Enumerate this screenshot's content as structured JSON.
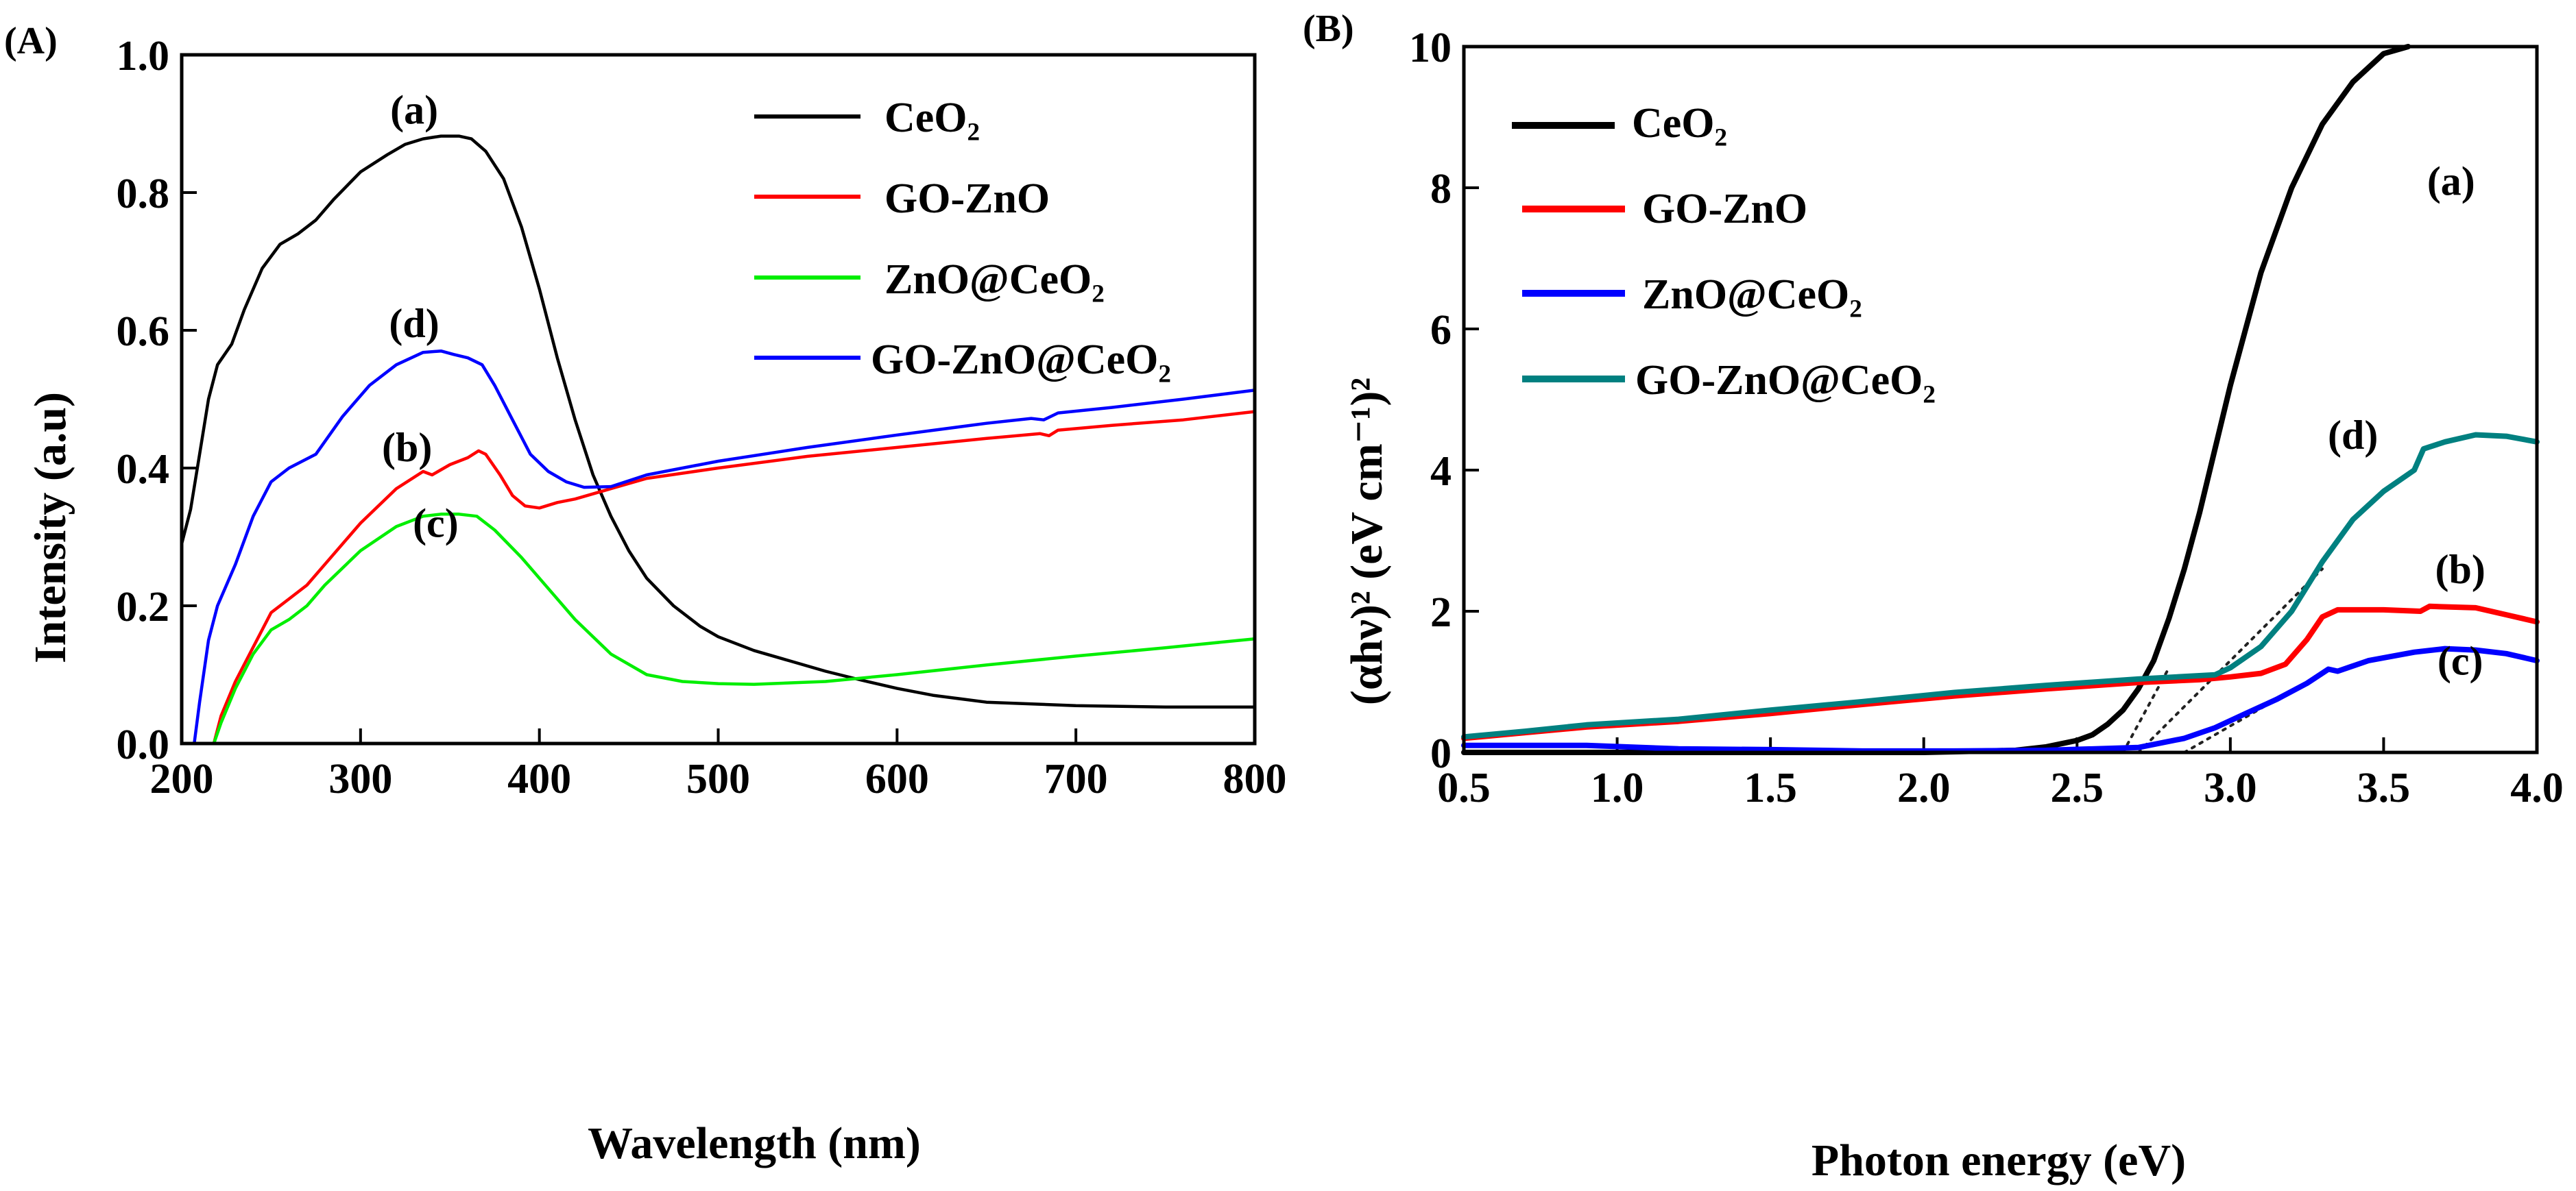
{
  "chart_data": [
    {
      "panel": "(A)",
      "type": "line",
      "xlabel": "Wavelength (nm)",
      "ylabel": "Intensity (a.u)",
      "xlim": [
        200,
        800
      ],
      "ylim": [
        0.0,
        1.0
      ],
      "xticks": [
        "200",
        "300",
        "400",
        "500",
        "600",
        "700",
        "800"
      ],
      "yticks": [
        "0.0",
        "0.2",
        "0.4",
        "0.6",
        "0.8",
        "1.0"
      ],
      "legend_position": "top-right",
      "series": [
        {
          "name": "CeO₂",
          "color": "#000000",
          "points": [
            [
              200,
              0.29
            ],
            [
              205,
              0.34
            ],
            [
              210,
              0.42
            ],
            [
              215,
              0.5
            ],
            [
              220,
              0.55
            ],
            [
              228,
              0.58
            ],
            [
              235,
              0.63
            ],
            [
              245,
              0.69
            ],
            [
              255,
              0.725
            ],
            [
              265,
              0.74
            ],
            [
              275,
              0.76
            ],
            [
              285,
              0.79
            ],
            [
              300,
              0.83
            ],
            [
              315,
              0.855
            ],
            [
              325,
              0.87
            ],
            [
              335,
              0.878
            ],
            [
              345,
              0.882
            ],
            [
              355,
              0.882
            ],
            [
              362,
              0.878
            ],
            [
              370,
              0.86
            ],
            [
              380,
              0.82
            ],
            [
              390,
              0.75
            ],
            [
              400,
              0.66
            ],
            [
              410,
              0.56
            ],
            [
              420,
              0.47
            ],
            [
              430,
              0.39
            ],
            [
              440,
              0.33
            ],
            [
              450,
              0.28
            ],
            [
              460,
              0.24
            ],
            [
              475,
              0.2
            ],
            [
              490,
              0.17
            ],
            [
              500,
              0.155
            ],
            [
              520,
              0.135
            ],
            [
              540,
              0.12
            ],
            [
              560,
              0.105
            ],
            [
              580,
              0.092
            ],
            [
              600,
              0.08
            ],
            [
              620,
              0.07
            ],
            [
              650,
              0.06
            ],
            [
              700,
              0.055
            ],
            [
              750,
              0.053
            ],
            [
              800,
              0.053
            ]
          ]
        },
        {
          "name": "GO-ZnO",
          "color": "#ff0000",
          "points": [
            [
              218,
              0.0
            ],
            [
              222,
              0.04
            ],
            [
              230,
              0.09
            ],
            [
              240,
              0.14
            ],
            [
              250,
              0.19
            ],
            [
              260,
              0.21
            ],
            [
              270,
              0.23
            ],
            [
              280,
              0.26
            ],
            [
              300,
              0.32
            ],
            [
              320,
              0.37
            ],
            [
              335,
              0.395
            ],
            [
              340,
              0.39
            ],
            [
              350,
              0.405
            ],
            [
              360,
              0.415
            ],
            [
              366,
              0.425
            ],
            [
              370,
              0.42
            ],
            [
              378,
              0.39
            ],
            [
              385,
              0.36
            ],
            [
              392,
              0.345
            ],
            [
              400,
              0.342
            ],
            [
              410,
              0.35
            ],
            [
              420,
              0.355
            ],
            [
              440,
              0.37
            ],
            [
              460,
              0.385
            ],
            [
              500,
              0.4
            ],
            [
              550,
              0.417
            ],
            [
              600,
              0.43
            ],
            [
              650,
              0.443
            ],
            [
              680,
              0.45
            ],
            [
              685,
              0.447
            ],
            [
              690,
              0.455
            ],
            [
              720,
              0.462
            ],
            [
              760,
              0.47
            ],
            [
              800,
              0.482
            ]
          ]
        },
        {
          "name": "ZnO@CeO₂",
          "color": "#00ee00",
          "points": [
            [
              218,
              0.0
            ],
            [
              222,
              0.03
            ],
            [
              230,
              0.08
            ],
            [
              240,
              0.13
            ],
            [
              250,
              0.165
            ],
            [
              260,
              0.18
            ],
            [
              270,
              0.2
            ],
            [
              280,
              0.23
            ],
            [
              300,
              0.28
            ],
            [
              320,
              0.315
            ],
            [
              335,
              0.33
            ],
            [
              345,
              0.333
            ],
            [
              355,
              0.333
            ],
            [
              365,
              0.33
            ],
            [
              375,
              0.31
            ],
            [
              390,
              0.27
            ],
            [
              400,
              0.24
            ],
            [
              420,
              0.18
            ],
            [
              440,
              0.13
            ],
            [
              460,
              0.1
            ],
            [
              480,
              0.09
            ],
            [
              500,
              0.087
            ],
            [
              520,
              0.086
            ],
            [
              560,
              0.09
            ],
            [
              600,
              0.1
            ],
            [
              650,
              0.114
            ],
            [
              700,
              0.127
            ],
            [
              750,
              0.139
            ],
            [
              800,
              0.152
            ]
          ]
        },
        {
          "name": "GO-ZnO@CeO₂",
          "color": "#0000ff",
          "points": [
            [
              207,
              0.0
            ],
            [
              210,
              0.06
            ],
            [
              215,
              0.15
            ],
            [
              220,
              0.2
            ],
            [
              230,
              0.26
            ],
            [
              240,
              0.33
            ],
            [
              250,
              0.38
            ],
            [
              260,
              0.4
            ],
            [
              275,
              0.42
            ],
            [
              290,
              0.475
            ],
            [
              305,
              0.52
            ],
            [
              320,
              0.55
            ],
            [
              335,
              0.568
            ],
            [
              345,
              0.57
            ],
            [
              352,
              0.565
            ],
            [
              360,
              0.56
            ],
            [
              368,
              0.55
            ],
            [
              375,
              0.52
            ],
            [
              385,
              0.47
            ],
            [
              395,
              0.42
            ],
            [
              405,
              0.395
            ],
            [
              415,
              0.38
            ],
            [
              425,
              0.372
            ],
            [
              440,
              0.373
            ],
            [
              460,
              0.39
            ],
            [
              500,
              0.41
            ],
            [
              550,
              0.43
            ],
            [
              600,
              0.448
            ],
            [
              650,
              0.465
            ],
            [
              675,
              0.472
            ],
            [
              682,
              0.47
            ],
            [
              690,
              0.48
            ],
            [
              720,
              0.488
            ],
            [
              760,
              0.5
            ],
            [
              800,
              0.513
            ]
          ]
        }
      ],
      "annotations": [
        {
          "text": "(a)",
          "x": 330,
          "y": 0.9
        },
        {
          "text": "(d)",
          "x": 330,
          "y": 0.59
        },
        {
          "text": "(b)",
          "x": 326,
          "y": 0.41
        },
        {
          "text": "(c)",
          "x": 342,
          "y": 0.3
        }
      ],
      "legend": [
        "CeO₂",
        "GO-ZnO",
        "ZnO@CeO₂",
        "GO-ZnO@CeO₂"
      ]
    },
    {
      "panel": "(B)",
      "type": "line",
      "xlabel": "Photon energy (eV)",
      "ylabel": "(αhν)² (eV cm⁻¹)²",
      "xlim": [
        0.5,
        4.0
      ],
      "ylim": [
        0,
        10
      ],
      "xticks": [
        "0.5",
        "1.0",
        "1.5",
        "2.0",
        "2.5",
        "3.0",
        "3.5",
        "4.0"
      ],
      "yticks": [
        "0",
        "2",
        "4",
        "6",
        "8",
        "10"
      ],
      "legend_position": "top-left",
      "series": [
        {
          "name": "CeO₂",
          "color": "#000000",
          "points": [
            [
              0.5,
              0.0
            ],
            [
              1.0,
              0.0
            ],
            [
              1.5,
              0.0
            ],
            [
              2.0,
              0.0
            ],
            [
              2.3,
              0.03
            ],
            [
              2.4,
              0.08
            ],
            [
              2.5,
              0.17
            ],
            [
              2.55,
              0.25
            ],
            [
              2.6,
              0.4
            ],
            [
              2.65,
              0.6
            ],
            [
              2.7,
              0.9
            ],
            [
              2.75,
              1.3
            ],
            [
              2.8,
              1.9
            ],
            [
              2.85,
              2.6
            ],
            [
              2.9,
              3.4
            ],
            [
              2.95,
              4.3
            ],
            [
              3.0,
              5.2
            ],
            [
              3.05,
              6.0
            ],
            [
              3.1,
              6.8
            ],
            [
              3.15,
              7.4
            ],
            [
              3.2,
              8.0
            ],
            [
              3.3,
              8.9
            ],
            [
              3.4,
              9.5
            ],
            [
              3.5,
              9.9
            ],
            [
              3.58,
              10.0
            ]
          ]
        },
        {
          "name": "GO-ZnO",
          "color": "#ff0000",
          "points": [
            [
              0.5,
              0.2
            ],
            [
              0.7,
              0.28
            ],
            [
              0.9,
              0.36
            ],
            [
              1.2,
              0.44
            ],
            [
              1.5,
              0.55
            ],
            [
              1.8,
              0.68
            ],
            [
              2.1,
              0.8
            ],
            [
              2.4,
              0.9
            ],
            [
              2.7,
              0.99
            ],
            [
              2.9,
              1.03
            ],
            [
              3.0,
              1.07
            ],
            [
              3.1,
              1.12
            ],
            [
              3.18,
              1.25
            ],
            [
              3.25,
              1.6
            ],
            [
              3.3,
              1.92
            ],
            [
              3.35,
              2.02
            ],
            [
              3.5,
              2.02
            ],
            [
              3.62,
              2.0
            ],
            [
              3.65,
              2.07
            ],
            [
              3.8,
              2.05
            ],
            [
              3.9,
              1.95
            ],
            [
              4.0,
              1.85
            ]
          ]
        },
        {
          "name": "ZnO@CeO₂",
          "color": "#0000ff",
          "points": [
            [
              0.5,
              0.1
            ],
            [
              0.7,
              0.1
            ],
            [
              0.9,
              0.1
            ],
            [
              1.2,
              0.05
            ],
            [
              1.5,
              0.04
            ],
            [
              1.8,
              0.02
            ],
            [
              2.1,
              0.02
            ],
            [
              2.4,
              0.03
            ],
            [
              2.7,
              0.07
            ],
            [
              2.85,
              0.2
            ],
            [
              2.95,
              0.35
            ],
            [
              3.05,
              0.55
            ],
            [
              3.15,
              0.75
            ],
            [
              3.25,
              0.98
            ],
            [
              3.32,
              1.18
            ],
            [
              3.35,
              1.15
            ],
            [
              3.45,
              1.3
            ],
            [
              3.6,
              1.42
            ],
            [
              3.7,
              1.47
            ],
            [
              3.8,
              1.45
            ],
            [
              3.9,
              1.4
            ],
            [
              4.0,
              1.3
            ]
          ]
        },
        {
          "name": "GO-ZnO@CeO₂",
          "color": "#008080",
          "points": [
            [
              0.5,
              0.22
            ],
            [
              0.7,
              0.3
            ],
            [
              0.9,
              0.39
            ],
            [
              1.2,
              0.47
            ],
            [
              1.5,
              0.6
            ],
            [
              1.8,
              0.72
            ],
            [
              2.1,
              0.85
            ],
            [
              2.4,
              0.95
            ],
            [
              2.7,
              1.04
            ],
            [
              2.95,
              1.1
            ],
            [
              3.0,
              1.2
            ],
            [
              3.1,
              1.5
            ],
            [
              3.2,
              2.0
            ],
            [
              3.3,
              2.7
            ],
            [
              3.4,
              3.3
            ],
            [
              3.5,
              3.7
            ],
            [
              3.6,
              4.0
            ],
            [
              3.63,
              4.3
            ],
            [
              3.7,
              4.4
            ],
            [
              3.8,
              4.5
            ],
            [
              3.9,
              4.48
            ],
            [
              4.0,
              4.4
            ]
          ]
        }
      ],
      "tangent_lines": [
        {
          "points": [
            [
              2.65,
              0.0
            ],
            [
              2.8,
              1.2
            ]
          ]
        },
        {
          "points": [
            [
              2.7,
              0.0
            ],
            [
              3.3,
              2.6
            ]
          ]
        },
        {
          "points": [
            [
              2.85,
              0.0
            ],
            [
              3.25,
              1.0
            ]
          ]
        }
      ],
      "annotations": [
        {
          "text": "(a)",
          "x": 3.72,
          "y": 7.9
        },
        {
          "text": "(d)",
          "x": 3.4,
          "y": 4.3
        },
        {
          "text": "(b)",
          "x": 3.75,
          "y": 2.4
        },
        {
          "text": "(c)",
          "x": 3.75,
          "y": 1.1
        }
      ],
      "legend": [
        "CeO₂",
        "GO-ZnO",
        "ZnO@CeO₂",
        "GO-ZnO@CeO₂"
      ]
    }
  ]
}
